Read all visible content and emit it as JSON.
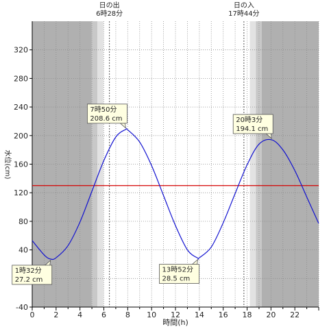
{
  "chart_data": {
    "type": "line",
    "xlabel": "時間(h)",
    "ylabel": "水位(cm)",
    "xlim": [
      0,
      24
    ],
    "ylim": [
      -40,
      360
    ],
    "x_ticks": [
      0,
      2,
      4,
      6,
      8,
      10,
      12,
      14,
      16,
      18,
      20,
      22
    ],
    "x_tick_labels": [
      "0",
      "2",
      "4",
      "6",
      "8",
      "10",
      "12",
      "14",
      "16",
      "18",
      "20",
      "22"
    ],
    "y_ticks": [
      -40,
      0,
      40,
      80,
      120,
      160,
      200,
      240,
      280,
      320
    ],
    "y_tick_labels": [
      "-40",
      "0",
      "40",
      "80",
      "120",
      "160",
      "200",
      "240",
      "280",
      "320"
    ],
    "grid": true,
    "reference_line": {
      "y": 130,
      "color": "#d40000"
    },
    "sunrise": {
      "label": "日の出",
      "time": "6時28分",
      "hour": 6.467
    },
    "sunset": {
      "label": "日の入",
      "time": "17時44分",
      "hour": 17.733
    },
    "night_color": "#b0b0b0",
    "twilight_colors": [
      "#c8c8c8",
      "#e2e2e2"
    ],
    "series": [
      {
        "color": "#1010d0",
        "x": [
          0,
          1,
          1.533,
          2,
          3,
          4,
          5,
          6,
          7,
          7.833,
          8,
          9,
          10,
          11,
          12,
          13,
          13.867,
          14,
          15,
          16,
          17,
          18,
          19,
          20.05,
          21,
          22,
          23,
          24
        ],
        "y": [
          53,
          33,
          27.2,
          29,
          46,
          79,
          122,
          165,
          198,
          208.6,
          208,
          191,
          158,
          116,
          74,
          40,
          28.5,
          29,
          44,
          78,
          119,
          159,
          188,
          194.1,
          180,
          151,
          114,
          77
        ]
      }
    ],
    "annotations": [
      {
        "time": "1時32分",
        "value": "27.2 cm",
        "x": 1.533,
        "y": 27.2,
        "pos": "below"
      },
      {
        "time": "7時50分",
        "value": "208.6 cm",
        "x": 7.833,
        "y": 208.6,
        "pos": "above"
      },
      {
        "time": "13時52分",
        "value": "28.5 cm",
        "x": 13.867,
        "y": 28.5,
        "pos": "below"
      },
      {
        "time": "20時3分",
        "value": "194.1 cm",
        "x": 20.05,
        "y": 194.1,
        "pos": "above"
      }
    ]
  }
}
